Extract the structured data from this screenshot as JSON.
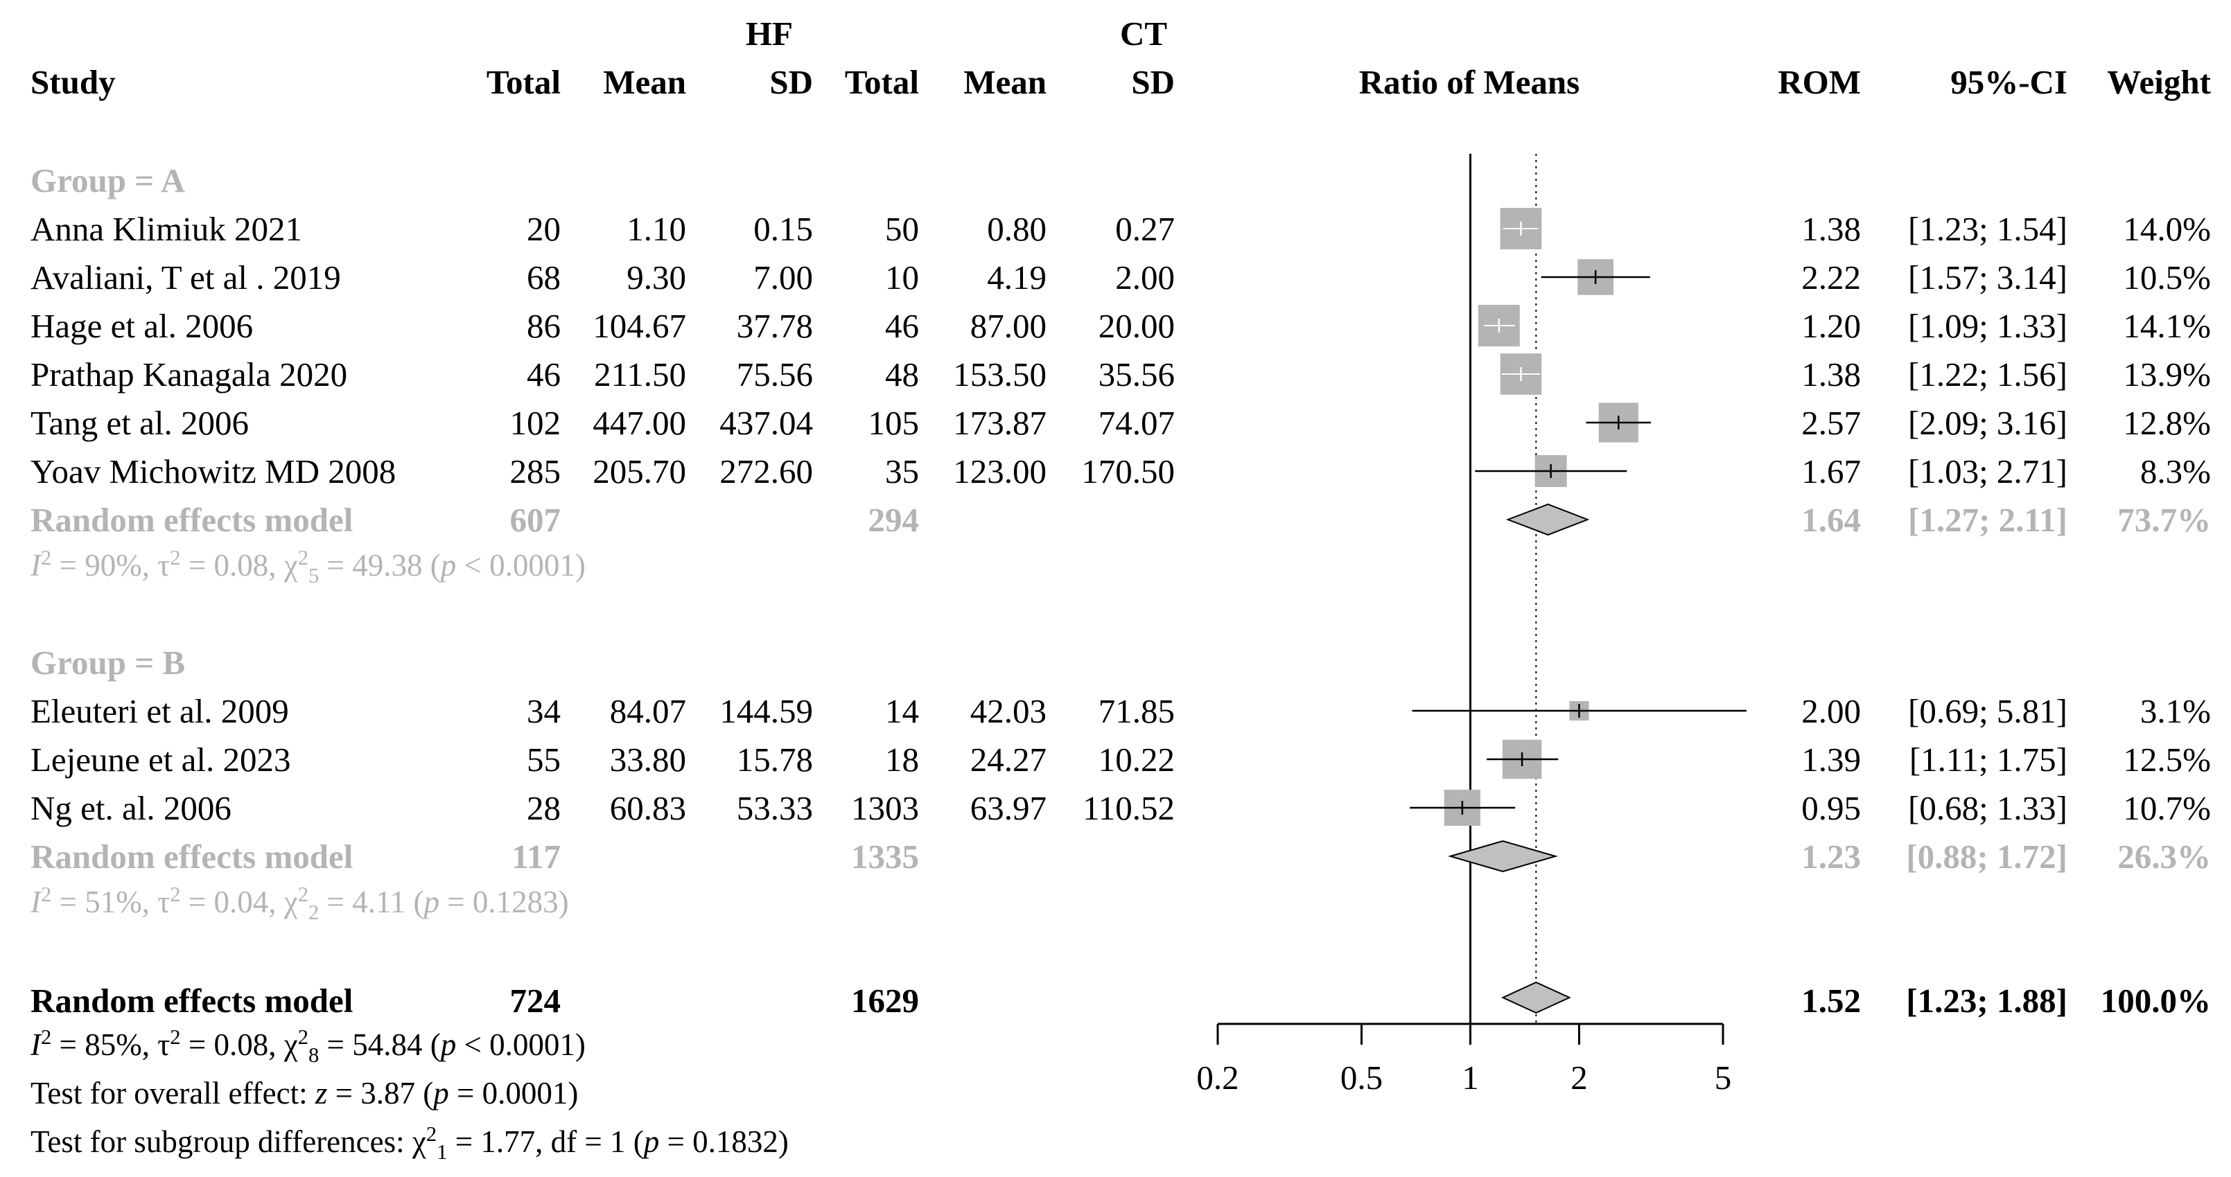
{
  "chart_data": {
    "type": "forest",
    "effect_measure": "Ratio of Means",
    "x_axis": {
      "scale": "log",
      "range": [
        0.2,
        5
      ],
      "ticks": [
        "0.2",
        "0.5",
        "1",
        "2",
        "5"
      ],
      "reference_line": 1,
      "overall_effect_line": 1.52
    },
    "headers": {
      "group_hf": "HF",
      "group_ct": "CT",
      "study": "Study",
      "total": "Total",
      "mean": "Mean",
      "sd": "SD",
      "plot": "Ratio of Means",
      "rom": "ROM",
      "ci": "95%-CI",
      "weight": "Weight"
    },
    "groups": [
      {
        "label": "Group = A",
        "studies": [
          {
            "study": "Anna Klimiuk 2021",
            "hf_total": "20",
            "hf_mean": "1.10",
            "hf_sd": "0.15",
            "ct_total": "50",
            "ct_mean": "0.80",
            "ct_sd": "0.27",
            "rom": 1.38,
            "lo": 1.23,
            "hi": 1.54,
            "weight": 14.0,
            "rom_text": "1.38",
            "ci_text": "[1.23; 1.54]",
            "weight_text": "14.0%"
          },
          {
            "study": "Avaliani, T et al . 2019",
            "hf_total": "68",
            "hf_mean": "9.30",
            "hf_sd": "7.00",
            "ct_total": "10",
            "ct_mean": "4.19",
            "ct_sd": "2.00",
            "rom": 2.22,
            "lo": 1.57,
            "hi": 3.14,
            "weight": 10.5,
            "rom_text": "2.22",
            "ci_text": "[1.57; 3.14]",
            "weight_text": "10.5%"
          },
          {
            "study": "Hage et al. 2006",
            "hf_total": "86",
            "hf_mean": "104.67",
            "hf_sd": "37.78",
            "ct_total": "46",
            "ct_mean": "87.00",
            "ct_sd": "20.00",
            "rom": 1.2,
            "lo": 1.09,
            "hi": 1.33,
            "weight": 14.1,
            "rom_text": "1.20",
            "ci_text": "[1.09; 1.33]",
            "weight_text": "14.1%"
          },
          {
            "study": "Prathap Kanagala 2020",
            "hf_total": "46",
            "hf_mean": "211.50",
            "hf_sd": "75.56",
            "ct_total": "48",
            "ct_mean": "153.50",
            "ct_sd": "35.56",
            "rom": 1.38,
            "lo": 1.22,
            "hi": 1.56,
            "weight": 13.9,
            "rom_text": "1.38",
            "ci_text": "[1.22; 1.56]",
            "weight_text": "13.9%"
          },
          {
            "study": "Tang et al. 2006",
            "hf_total": "102",
            "hf_mean": "447.00",
            "hf_sd": "437.04",
            "ct_total": "105",
            "ct_mean": "173.87",
            "ct_sd": "74.07",
            "rom": 2.57,
            "lo": 2.09,
            "hi": 3.16,
            "weight": 12.8,
            "rom_text": "2.57",
            "ci_text": "[2.09; 3.16]",
            "weight_text": "12.8%"
          },
          {
            "study": "Yoav Michowitz MD 2008",
            "hf_total": "285",
            "hf_mean": "205.70",
            "hf_sd": "272.60",
            "ct_total": "35",
            "ct_mean": "123.00",
            "ct_sd": "170.50",
            "rom": 1.67,
            "lo": 1.03,
            "hi": 2.71,
            "weight": 8.3,
            "rom_text": "1.67",
            "ci_text": "[1.03; 2.71]",
            "weight_text": "8.3%"
          }
        ],
        "model": {
          "label": "Random effects model",
          "hf_total": "607",
          "ct_total": "294",
          "rom": 1.64,
          "lo": 1.27,
          "hi": 2.11,
          "rom_text": "1.64",
          "ci_text": "[1.27; 2.11]",
          "weight_text": "73.7%"
        },
        "heterogeneity": {
          "i2": "90%",
          "tau2": "0.08",
          "chi2_df": "5",
          "chi2": "49.38",
          "p_op": "<",
          "p": "0.0001"
        }
      },
      {
        "label": "Group = B",
        "studies": [
          {
            "study": "Eleuteri et al. 2009",
            "hf_total": "34",
            "hf_mean": "84.07",
            "hf_sd": "144.59",
            "ct_total": "14",
            "ct_mean": "42.03",
            "ct_sd": "71.85",
            "rom": 2.0,
            "lo": 0.69,
            "hi": 5.81,
            "weight": 3.1,
            "rom_text": "2.00",
            "ci_text": "[0.69; 5.81]",
            "weight_text": "3.1%"
          },
          {
            "study": "Lejeune et al. 2023",
            "hf_total": "55",
            "hf_mean": "33.80",
            "hf_sd": "15.78",
            "ct_total": "18",
            "ct_mean": "24.27",
            "ct_sd": "10.22",
            "rom": 1.39,
            "lo": 1.11,
            "hi": 1.75,
            "weight": 12.5,
            "rom_text": "1.39",
            "ci_text": "[1.11; 1.75]",
            "weight_text": "12.5%"
          },
          {
            "study": "Ng et. al. 2006",
            "hf_total": "28",
            "hf_mean": "60.83",
            "hf_sd": "53.33",
            "ct_total": "1303",
            "ct_mean": "63.97",
            "ct_sd": "110.52",
            "rom": 0.95,
            "lo": 0.68,
            "hi": 1.33,
            "weight": 10.7,
            "rom_text": "0.95",
            "ci_text": "[0.68; 1.33]",
            "weight_text": "10.7%"
          }
        ],
        "model": {
          "label": "Random effects model",
          "hf_total": "117",
          "ct_total": "1335",
          "rom": 1.23,
          "lo": 0.88,
          "hi": 1.72,
          "rom_text": "1.23",
          "ci_text": "[0.88; 1.72]",
          "weight_text": "26.3%"
        },
        "heterogeneity": {
          "i2": "51%",
          "tau2": "0.04",
          "chi2_df": "2",
          "chi2": "4.11",
          "p_op": "=",
          "p": "0.1283"
        }
      }
    ],
    "overall": {
      "label": "Random effects model",
      "hf_total": "724",
      "ct_total": "1629",
      "rom": 1.52,
      "lo": 1.23,
      "hi": 1.88,
      "rom_text": "1.52",
      "ci_text": "[1.23; 1.88]",
      "weight_text": "100.0%",
      "heterogeneity": {
        "i2": "85%",
        "tau2": "0.08",
        "chi2_df": "8",
        "chi2": "54.84",
        "p_op": "<",
        "p": "0.0001"
      },
      "test_overall": {
        "label": "Test for overall effect:",
        "z": "3.87",
        "p": "0.0001"
      },
      "test_subgroup": {
        "label": "Test for subgroup differences:",
        "chi2_df": "1",
        "chi2": "1.77",
        "df_label": "df",
        "df": "1",
        "p": "0.1832"
      }
    },
    "colors": {
      "group_text": "#b4b4b4",
      "square": "#b4b4b4",
      "diamond": "#c0c0c0",
      "diamond_stroke": "#000000",
      "line": "#000000"
    }
  }
}
